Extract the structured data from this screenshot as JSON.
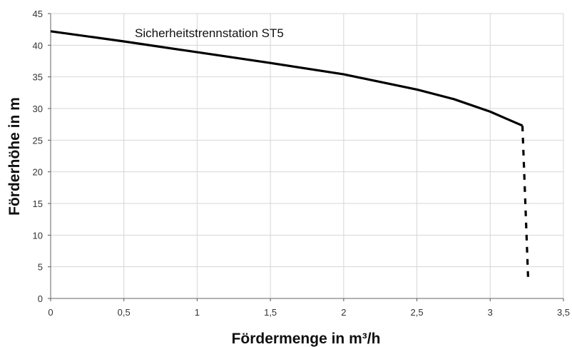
{
  "chart_data": {
    "type": "line",
    "xlabel": "Fördermenge in m³/h",
    "ylabel": "Förderhöhe in m",
    "xlim": [
      0,
      3.5
    ],
    "ylim": [
      0,
      45
    ],
    "x_ticks": [
      "0",
      "0,5",
      "1",
      "1,5",
      "2",
      "2,5",
      "3",
      "3,5"
    ],
    "y_ticks": [
      "0",
      "5",
      "10",
      "15",
      "20",
      "25",
      "30",
      "35",
      "40",
      "45"
    ],
    "grid": true,
    "annotation": "Sicherheitstrennstation ST5",
    "series": [
      {
        "style": "solid",
        "x": [
          0,
          0.5,
          1.0,
          1.5,
          2.0,
          2.5,
          2.75,
          3.0,
          3.1,
          3.2,
          3.22
        ],
        "y": [
          42.2,
          40.6,
          38.9,
          37.2,
          35.4,
          33.0,
          31.5,
          29.5,
          28.5,
          27.5,
          27.3
        ]
      },
      {
        "style": "dashed",
        "x": [
          3.22,
          3.24,
          3.26
        ],
        "y": [
          27.3,
          15.0,
          2.5
        ]
      }
    ]
  }
}
